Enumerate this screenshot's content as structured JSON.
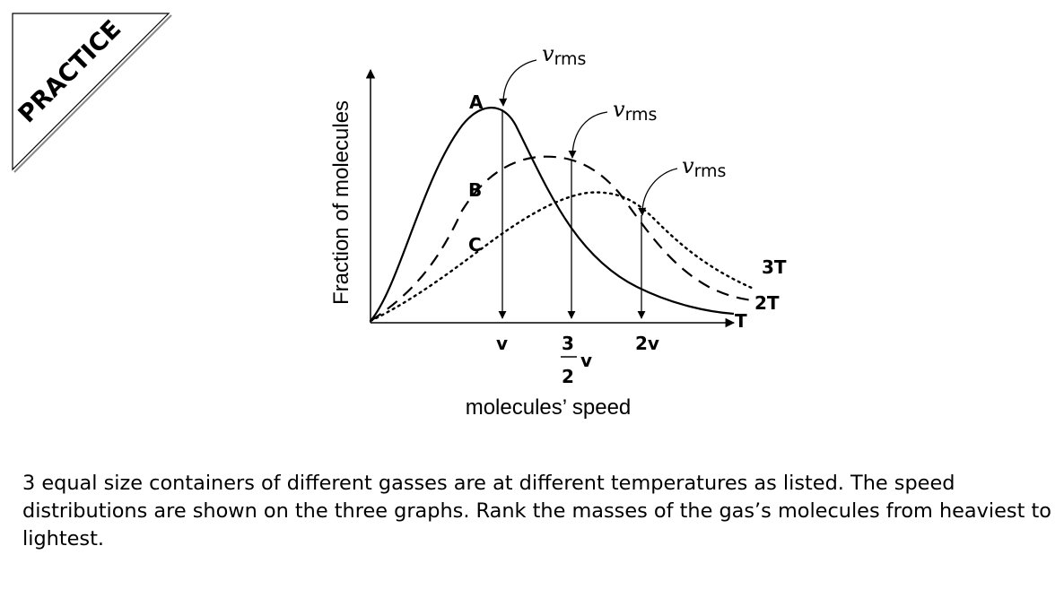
{
  "badge": {
    "text": "PRACTICE"
  },
  "diagram": {
    "y_axis_label": "Fraction of molecules",
    "x_axis_label": "molecules’ speed",
    "curve_letters": {
      "a": "A",
      "b": "B",
      "c": "C"
    },
    "temperatures": {
      "t": "T",
      "t2": "2T",
      "t3": "3T"
    },
    "vrms_label": {
      "main": "v",
      "sub": "rms"
    },
    "ticks": {
      "v": "v",
      "frac_num": "3",
      "frac_den": "2",
      "frac_v": "v",
      "two_v": "2v"
    }
  },
  "question": "3 equal size containers of different gasses are at different temperatures as listed. The speed distributions are shown on the three graphs. Rank the masses of the gas’s molecules from heaviest to lightest."
}
